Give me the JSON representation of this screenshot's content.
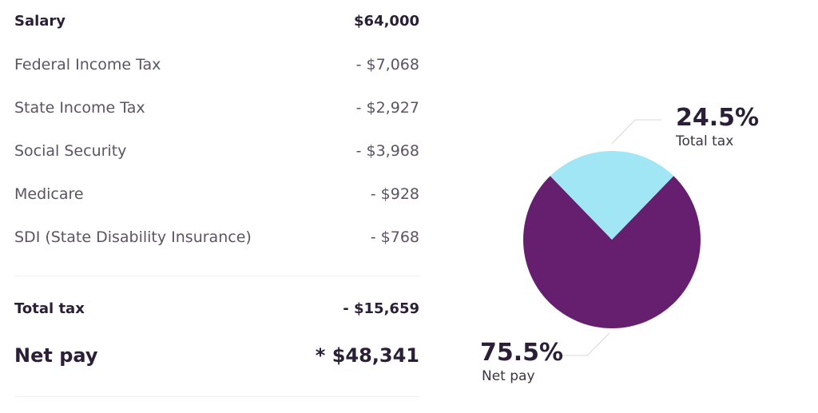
{
  "breakdown": {
    "salary": {
      "label": "Salary",
      "value": "$64,000"
    },
    "items": [
      {
        "label": "Federal Income Tax",
        "value": "- $7,068"
      },
      {
        "label": "State Income Tax",
        "value": "- $2,927"
      },
      {
        "label": "Social Security",
        "value": "- $3,968"
      },
      {
        "label": "Medicare",
        "value": "- $928"
      },
      {
        "label": "SDI (State Disability Insurance)",
        "value": "- $768"
      }
    ],
    "total_tax": {
      "label": "Total tax",
      "value": "- $15,659"
    },
    "net_pay": {
      "label": "Net pay",
      "value": "* $48,341"
    }
  },
  "chart_data": {
    "type": "pie",
    "slices": [
      {
        "name": "Total tax",
        "value": 24.5,
        "label": "24.5%",
        "color": "#a0e6f5"
      },
      {
        "name": "Net pay",
        "value": 75.5,
        "label": "75.5%",
        "color": "#651f6e"
      }
    ]
  }
}
